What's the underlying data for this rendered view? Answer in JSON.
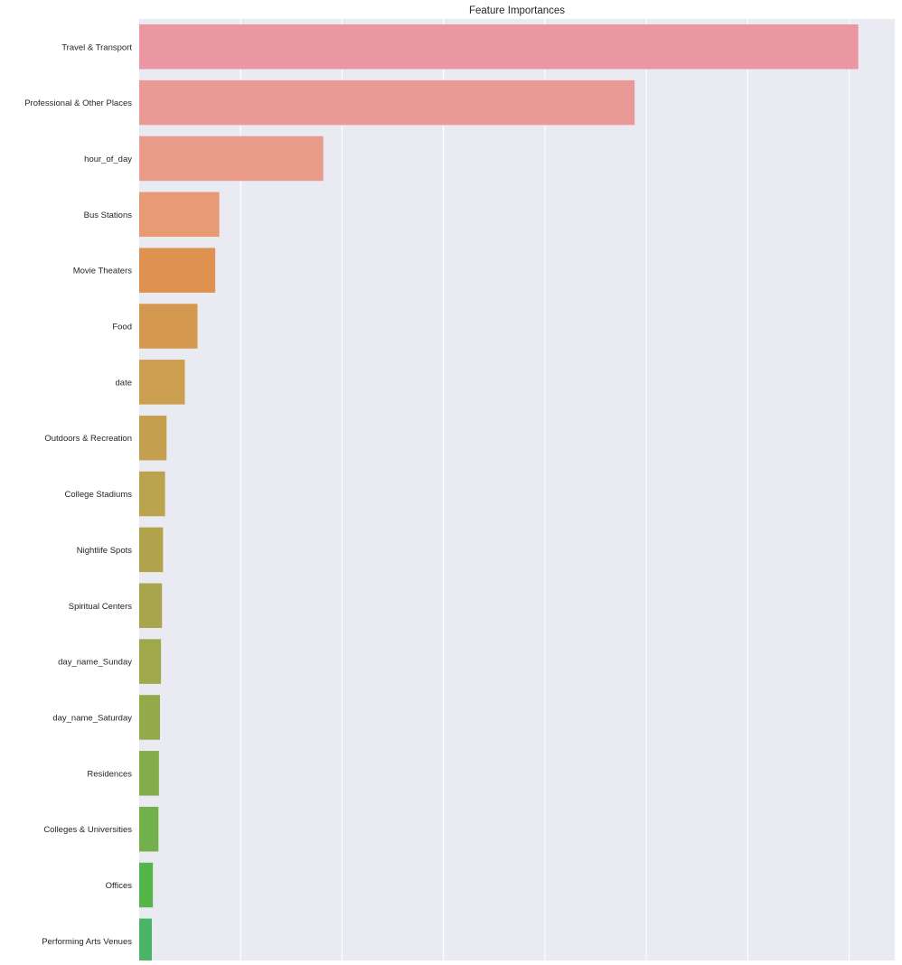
{
  "chart_data": {
    "type": "bar",
    "orientation": "horizontal",
    "title": "Feature Importances",
    "xlabel": "",
    "ylabel": "",
    "grid": true,
    "xlim": [
      0,
      0.149
    ],
    "x_gridlines": [
      0.02,
      0.04,
      0.06,
      0.08,
      0.1,
      0.12,
      0.14
    ],
    "x_tick_labels_visible": false,
    "categories": [
      "Travel & Transport",
      "Professional & Other Places",
      "hour_of_day",
      "Bus Stations",
      "Movie Theaters",
      "Food",
      "date",
      "Outdoors & Recreation",
      "College Stadiums",
      "Nightlife Spots",
      "Spiritual Centers",
      "day_name_Sunday",
      "day_name_Saturday",
      "Residences",
      "Colleges & Universities",
      "Offices",
      "Performing Arts Venues"
    ],
    "values": [
      0.1418,
      0.0977,
      0.0363,
      0.0158,
      0.015,
      0.0115,
      0.009,
      0.0054,
      0.0051,
      0.0047,
      0.0045,
      0.0043,
      0.0041,
      0.0039,
      0.0038,
      0.0027,
      0.0025
    ],
    "colors": [
      "#ea96a3",
      "#e99a96",
      "#e89b88",
      "#e89a74",
      "#df9150",
      "#d5984f",
      "#cc9f50",
      "#c39f4e",
      "#baa34d",
      "#b1a34c",
      "#a8a54c",
      "#9fa84b",
      "#93aa4a",
      "#82ad49",
      "#71b04a",
      "#54b649",
      "#4ab467"
    ]
  }
}
